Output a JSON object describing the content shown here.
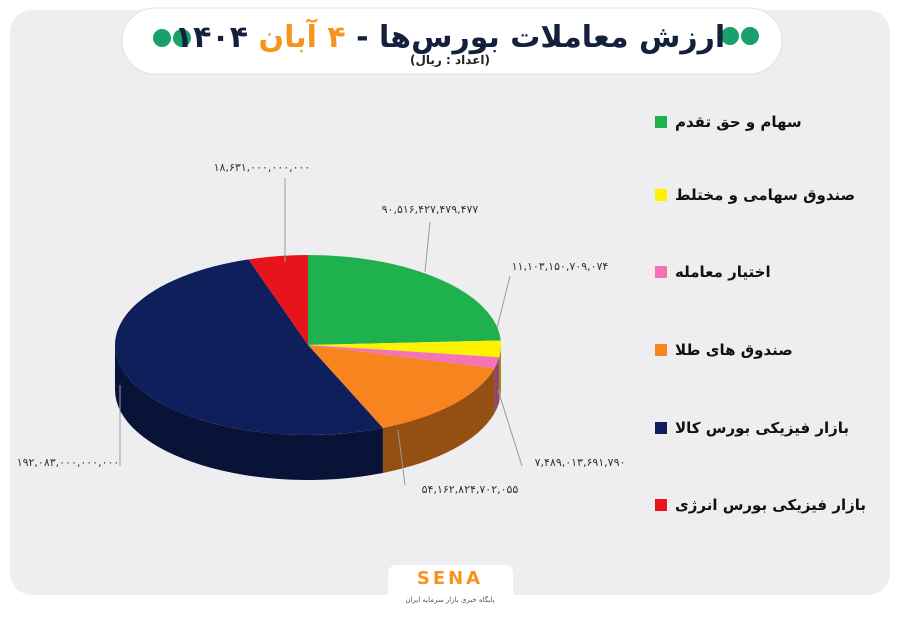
{
  "chart_data": {
    "type": "pie",
    "title": "ارزش معاملات بورس‌ها -",
    "date": "۴ آبان",
    "year": "۱۴۰۴",
    "subtitle": "(اعداد : ریال)",
    "series": [
      {
        "name": "سهام و حق تقدم",
        "color": "#1fb14e",
        "values": [
          90516427479477
        ],
        "value_labels": [
          "۹۰,۵۱۶,۴۲۷,۴۷۹,۴۷۷"
        ]
      },
      {
        "name": "صندوق سهامی و مختلط",
        "color": "#fff200",
        "values": [
          11103150709074
        ],
        "value_labels": [
          "۱۱,۱۰۳,۱۵۰,۷۰۹,۰۷۴"
        ]
      },
      {
        "name": "اختیار معامله",
        "color": "#f472b6",
        "values": [
          7489013691790
        ],
        "value_labels": [
          "۷,۴۸۹,۰۱۳,۶۹۱,۷۹۰"
        ]
      },
      {
        "name": "صندوق های طلا",
        "color": "#f7841e",
        "values": [
          54162824702055
        ],
        "value_labels": [
          "۵۴,۱۶۲,۸۲۴,۷۰۲,۰۵۵"
        ]
      },
      {
        "name": "بازار فیزیکی بورس کالا",
        "color": "#0f1f5c",
        "values": [
          192083000000000
        ],
        "value_labels": [
          "۱۹۲,۰۸۳,۰۰۰,۰۰۰,۰۰۰"
        ]
      },
      {
        "name": "بازار فیزیکی بورس انرژی",
        "color": "#e8141b",
        "values": [
          18631000000000
        ],
        "value_labels": [
          "۱۸,۶۳۱,۰۰۰,۰۰۰,۰۰۰"
        ]
      }
    ]
  },
  "footer": {
    "logo": "SENA",
    "tagline": "پایگاه خبری بازار سرمایه ایران"
  }
}
